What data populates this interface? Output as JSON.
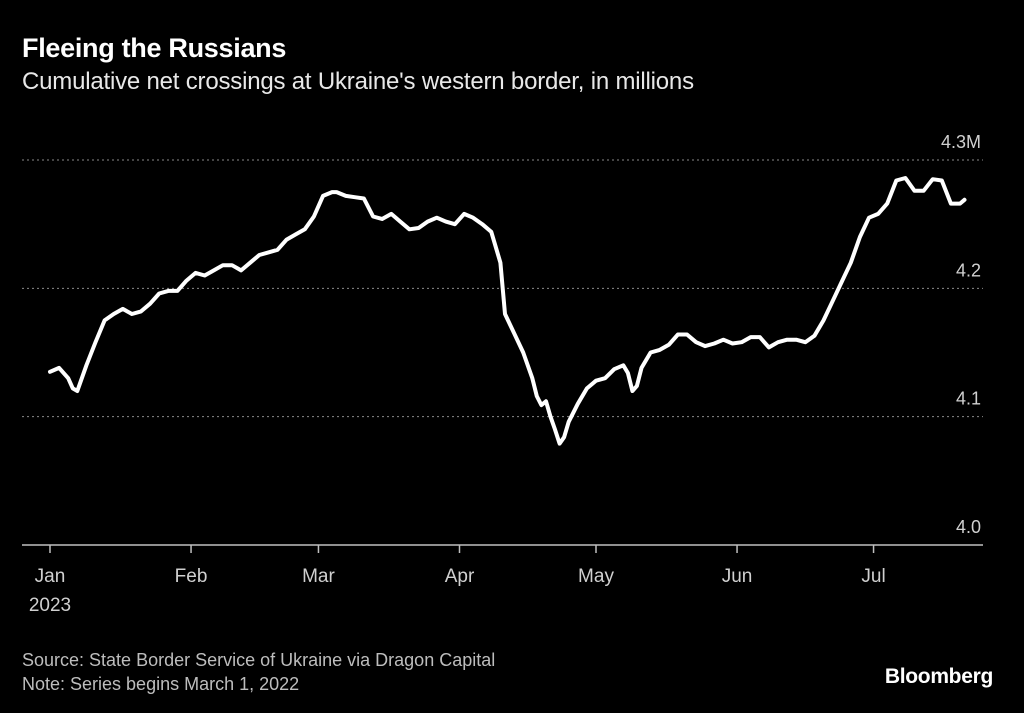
{
  "header": {
    "title": "Fleeing the Russians",
    "subtitle": "Cumulative net crossings at Ukraine's western border, in millions"
  },
  "footer": {
    "source": "Source: State Border Service of Ukraine via Dragon Capital",
    "note": "Note: Series begins March 1, 2022",
    "brand": "Bloomberg"
  },
  "colors": {
    "background": "#000000",
    "line": "#ffffff",
    "grid": "#8a8a8a",
    "axis": "#bfbfbf",
    "tick_text": "#d0d0d0"
  },
  "chart_data": {
    "type": "line",
    "title": "Fleeing the Russians",
    "subtitle": "Cumulative net crossings at Ukraine's western border, in millions",
    "xlabel": "",
    "ylabel": "",
    "x_range": [
      "2023-01-01",
      "2023-07-31"
    ],
    "ylim": [
      4.0,
      4.3
    ],
    "y_ticks": [
      {
        "value": 4.0,
        "label": "4.0"
      },
      {
        "value": 4.1,
        "label": "4.1"
      },
      {
        "value": 4.2,
        "label": "4.2"
      },
      {
        "value": 4.3,
        "label": "4.3M"
      }
    ],
    "x_ticks": [
      {
        "day": 0,
        "label": "Jan",
        "sublabel": "2023"
      },
      {
        "day": 31,
        "label": "Feb"
      },
      {
        "day": 59,
        "label": "Mar"
      },
      {
        "day": 90,
        "label": "Apr"
      },
      {
        "day": 120,
        "label": "May"
      },
      {
        "day": 151,
        "label": "Jun"
      },
      {
        "day": 181,
        "label": "Jul"
      }
    ],
    "grid": "horizontal dotted",
    "legend": "none",
    "series": [
      {
        "name": "Cumulative net crossings (millions)",
        "points": [
          [
            0,
            4.135
          ],
          [
            2,
            4.138
          ],
          [
            4,
            4.13
          ],
          [
            5,
            4.122
          ],
          [
            6,
            4.12
          ],
          [
            8,
            4.14
          ],
          [
            10,
            4.158
          ],
          [
            12,
            4.175
          ],
          [
            14,
            4.18
          ],
          [
            16,
            4.184
          ],
          [
            18,
            4.18
          ],
          [
            20,
            4.182
          ],
          [
            22,
            4.188
          ],
          [
            24,
            4.196
          ],
          [
            26,
            4.198
          ],
          [
            28,
            4.198
          ],
          [
            30,
            4.206
          ],
          [
            32,
            4.212
          ],
          [
            34,
            4.21
          ],
          [
            36,
            4.214
          ],
          [
            38,
            4.218
          ],
          [
            40,
            4.218
          ],
          [
            42,
            4.214
          ],
          [
            44,
            4.22
          ],
          [
            46,
            4.226
          ],
          [
            48,
            4.228
          ],
          [
            50,
            4.23
          ],
          [
            52,
            4.238
          ],
          [
            54,
            4.242
          ],
          [
            56,
            4.246
          ],
          [
            58,
            4.256
          ],
          [
            60,
            4.272
          ],
          [
            62,
            4.275
          ],
          [
            63,
            4.275
          ],
          [
            65,
            4.272
          ],
          [
            67,
            4.271
          ],
          [
            69,
            4.27
          ],
          [
            71,
            4.256
          ],
          [
            73,
            4.254
          ],
          [
            75,
            4.258
          ],
          [
            77,
            4.252
          ],
          [
            79,
            4.246
          ],
          [
            81,
            4.247
          ],
          [
            83,
            4.252
          ],
          [
            85,
            4.255
          ],
          [
            87,
            4.252
          ],
          [
            89,
            4.25
          ],
          [
            91,
            4.258
          ],
          [
            93,
            4.255
          ],
          [
            95,
            4.25
          ],
          [
            97,
            4.244
          ],
          [
            99,
            4.22
          ],
          [
            100,
            4.18
          ],
          [
            102,
            4.165
          ],
          [
            104,
            4.15
          ],
          [
            106,
            4.13
          ],
          [
            107,
            4.116
          ],
          [
            108,
            4.109
          ],
          [
            109,
            4.112
          ],
          [
            110,
            4.1
          ],
          [
            111,
            4.09
          ],
          [
            112,
            4.079
          ],
          [
            113,
            4.084
          ],
          [
            114,
            4.096
          ],
          [
            116,
            4.11
          ],
          [
            118,
            4.122
          ],
          [
            120,
            4.128
          ],
          [
            122,
            4.13
          ],
          [
            124,
            4.137
          ],
          [
            126,
            4.14
          ],
          [
            127,
            4.134
          ],
          [
            128,
            4.12
          ],
          [
            129,
            4.124
          ],
          [
            130,
            4.138
          ],
          [
            132,
            4.15
          ],
          [
            134,
            4.152
          ],
          [
            136,
            4.156
          ],
          [
            138,
            4.164
          ],
          [
            140,
            4.164
          ],
          [
            142,
            4.158
          ],
          [
            144,
            4.155
          ],
          [
            146,
            4.157
          ],
          [
            148,
            4.16
          ],
          [
            150,
            4.157
          ],
          [
            152,
            4.158
          ],
          [
            154,
            4.162
          ],
          [
            156,
            4.162
          ],
          [
            158,
            4.154
          ],
          [
            160,
            4.158
          ],
          [
            162,
            4.16
          ],
          [
            164,
            4.16
          ],
          [
            166,
            4.158
          ],
          [
            168,
            4.163
          ],
          [
            170,
            4.175
          ],
          [
            172,
            4.19
          ],
          [
            174,
            4.205
          ],
          [
            176,
            4.22
          ],
          [
            178,
            4.24
          ],
          [
            180,
            4.255
          ],
          [
            182,
            4.258
          ],
          [
            184,
            4.266
          ],
          [
            186,
            4.284
          ],
          [
            188,
            4.286
          ],
          [
            190,
            4.276
          ],
          [
            192,
            4.276
          ],
          [
            194,
            4.285
          ],
          [
            196,
            4.284
          ],
          [
            198,
            4.266
          ],
          [
            200,
            4.266
          ],
          [
            201,
            4.269
          ]
        ]
      }
    ]
  }
}
